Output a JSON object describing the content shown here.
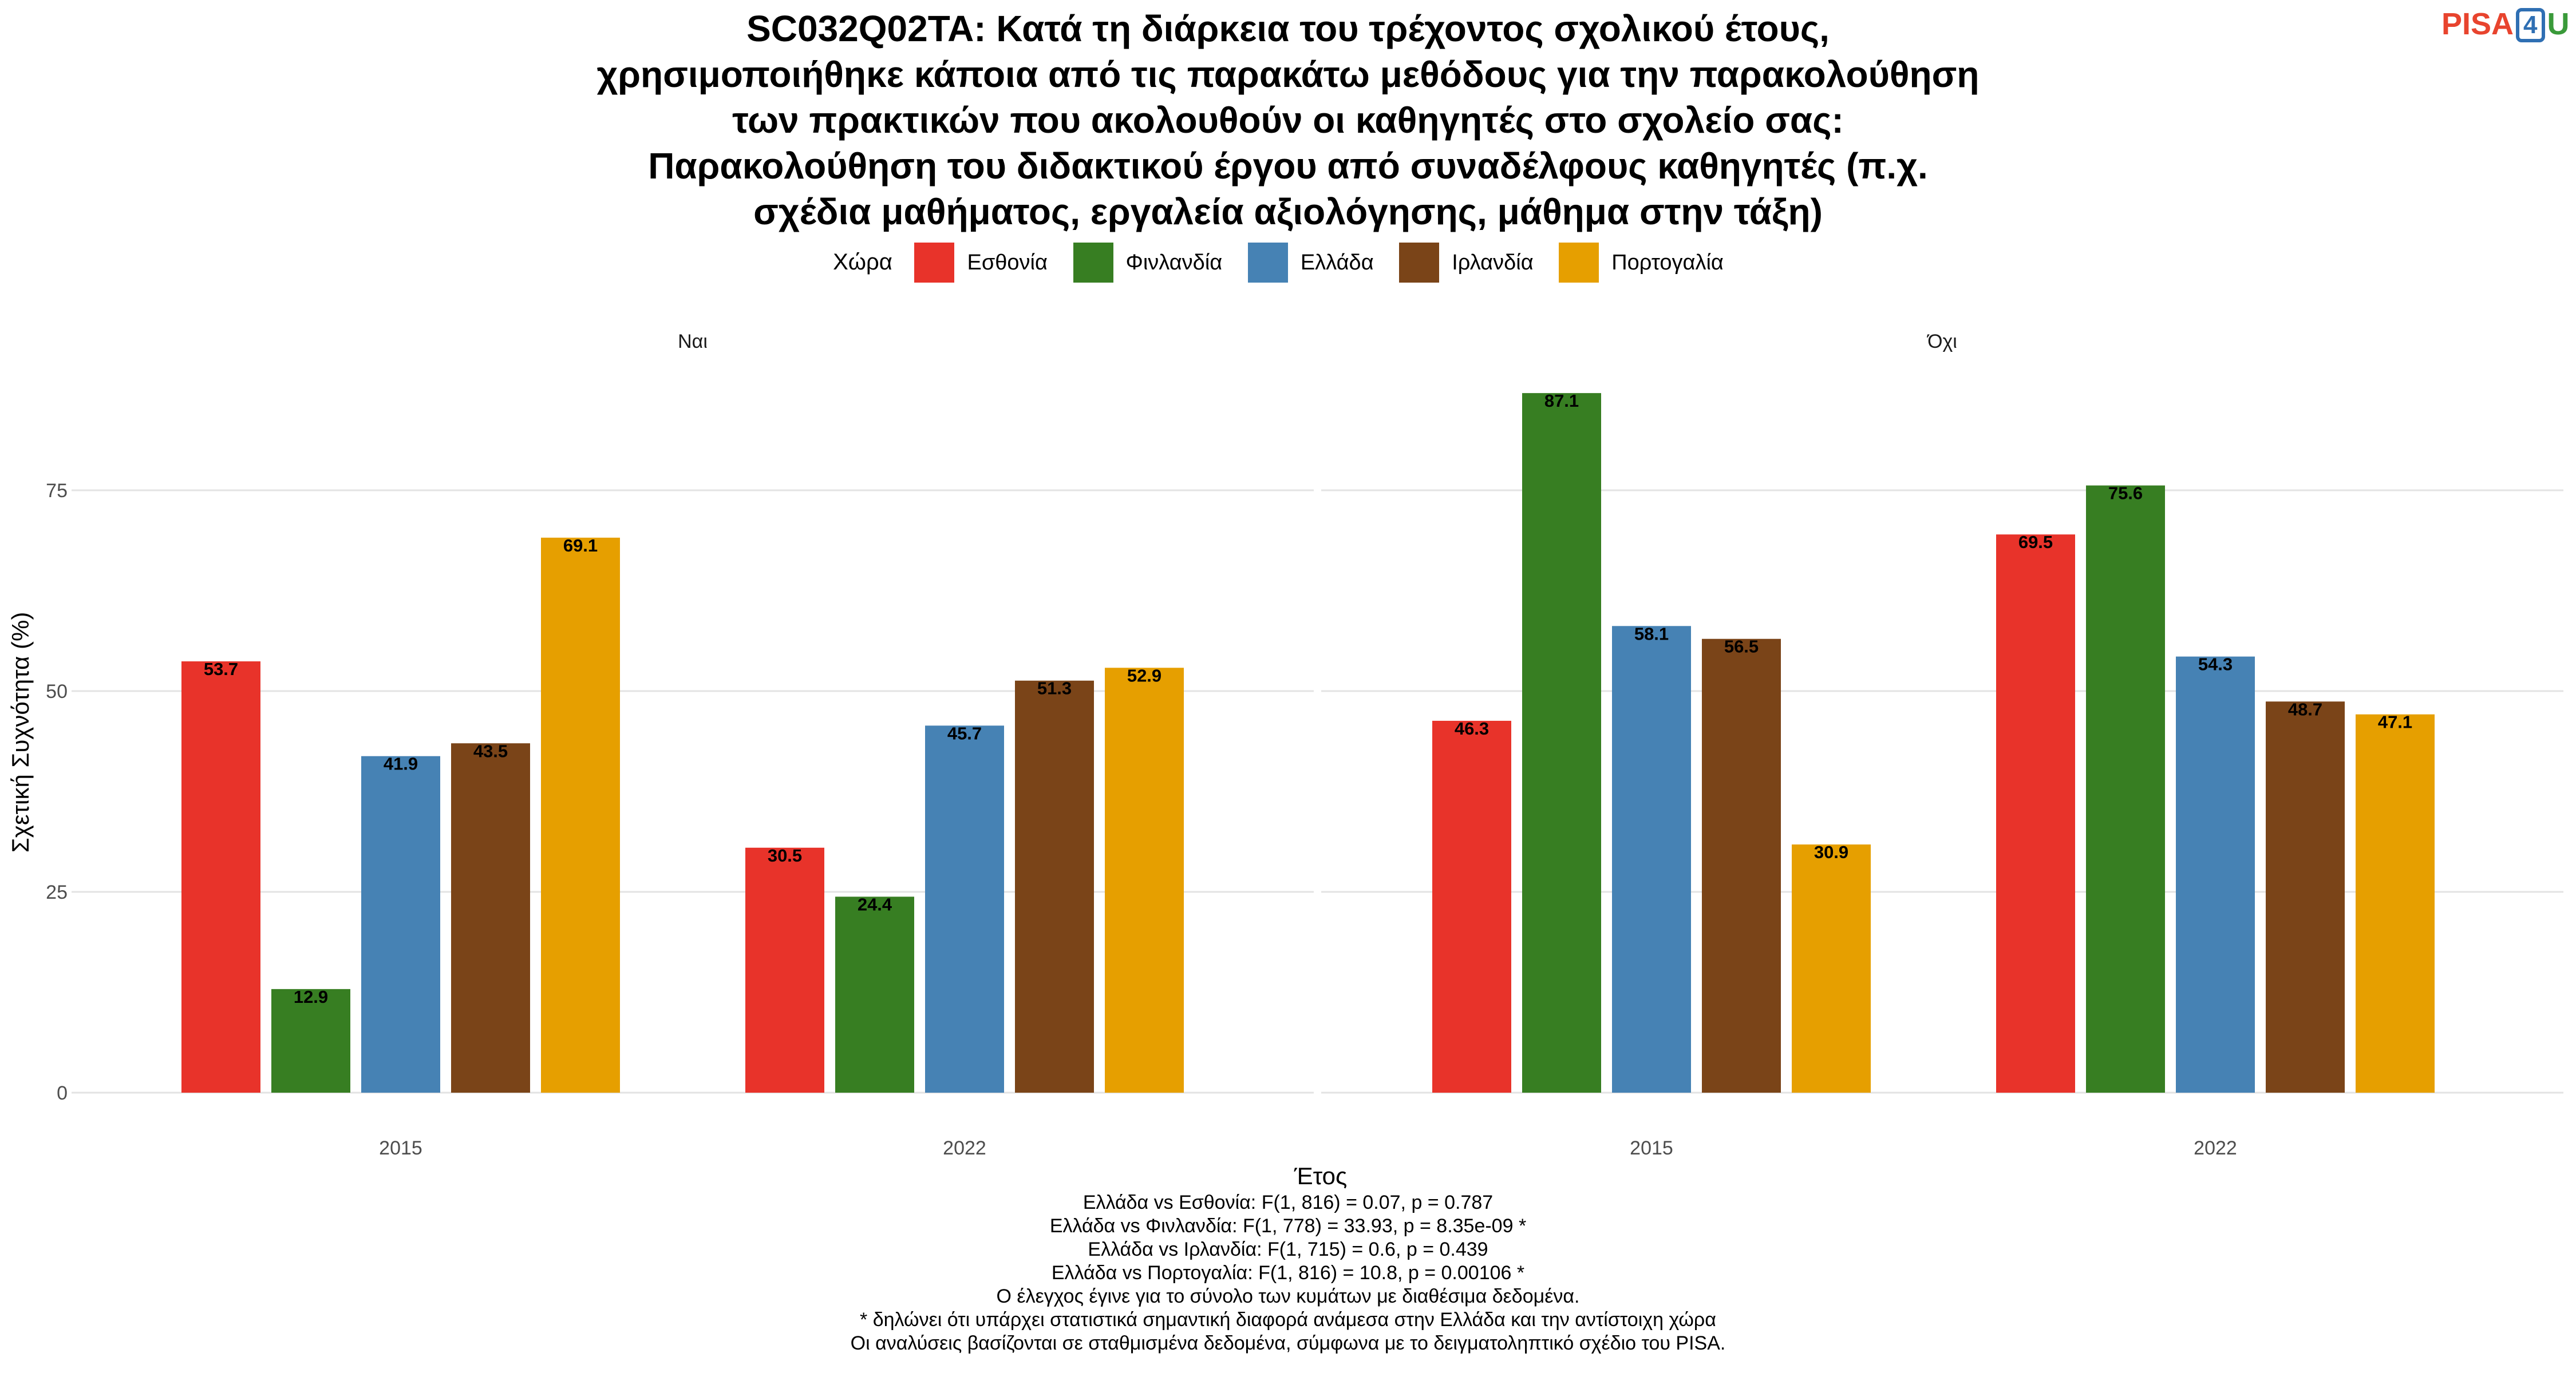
{
  "title_lines": [
    "SC032Q02TA: Κατά τη διάρκεια του τρέχοντος σχολικού έτους,",
    "χρησιμοποιήθηκε κάποια από τις παρακάτω μεθόδους για την παρακολούθηση",
    "των πρακτικών που ακολουθούν οι καθηγητές στο σχολείο σας:",
    "Παρακολούθηση του διδακτικού έργου από συναδέλφους καθηγητές (π.χ.",
    "σχέδια μαθήματος, εργαλεία αξιολόγησης, μάθημα στην τάξη)"
  ],
  "logo": {
    "part1": "PISA",
    "part2": "4",
    "part3": "U"
  },
  "chart_data": {
    "type": "bar",
    "title": "SC032Q02TA: Κατά τη διάρκεια του τρέχοντος σχολικού έτους, χρησιμοποιήθηκε κάποια από τις παρακάτω μεθόδους για την παρακολούθηση των πρακτικών που ακολουθούν οι καθηγητές στο σχολείο σας: Παρακολούθηση του διδακτικού έργου από συναδέλφους καθηγητές (π.χ. σχέδια μαθήματος, εργαλεία αξιολόγησης, μάθημα στην τάξη)",
    "xlabel": "Έτος",
    "ylabel": "Σχετική Συχνότητα (%)",
    "ylim": [
      0,
      90
    ],
    "yticks": [
      0,
      25,
      50,
      75
    ],
    "grid": true,
    "legend": {
      "title": "Χώρα",
      "position": "top",
      "entries": [
        "Εσθονία",
        "Φινλανδία",
        "Ελλάδα",
        "Ιρλανδία",
        "Πορτογαλία"
      ]
    },
    "colors": [
      "#e8332a",
      "#377e22",
      "#4682b4",
      "#7a4418",
      "#e69f00"
    ],
    "categories": [
      "2015",
      "2022"
    ],
    "facets": [
      {
        "label": "Ναι",
        "series": [
          {
            "name": "Εσθονία",
            "values": [
              53.7,
              30.5
            ]
          },
          {
            "name": "Φινλανδία",
            "values": [
              12.9,
              24.4
            ]
          },
          {
            "name": "Ελλάδα",
            "values": [
              41.9,
              45.7
            ]
          },
          {
            "name": "Ιρλανδία",
            "values": [
              43.5,
              51.3
            ]
          },
          {
            "name": "Πορτογαλία",
            "values": [
              69.1,
              52.9
            ]
          }
        ]
      },
      {
        "label": "Όχι",
        "series": [
          {
            "name": "Εσθονία",
            "values": [
              46.3,
              69.5
            ]
          },
          {
            "name": "Φινλανδία",
            "values": [
              87.1,
              75.6
            ]
          },
          {
            "name": "Ελλάδα",
            "values": [
              58.1,
              54.3
            ]
          },
          {
            "name": "Ιρλανδία",
            "values": [
              56.5,
              48.7
            ]
          },
          {
            "name": "Πορτογαλία",
            "values": [
              30.9,
              47.1
            ]
          }
        ]
      }
    ]
  },
  "notes": [
    "Ελλάδα vs Εσθονία: F(1, 816) = 0.07, p = 0.787",
    "Ελλάδα vs Φινλανδία: F(1, 778) = 33.93, p = 8.35e-09 *",
    "Ελλάδα vs Ιρλανδία: F(1, 715) = 0.6, p = 0.439",
    "Ελλάδα vs Πορτογαλία: F(1, 816) = 10.8, p = 0.00106 *",
    "Ο έλεγχος έγινε για το σύνολο των κυμάτων με διαθέσιμα δεδομένα.",
    "* δηλώνει ότι υπάρχει στατιστικά σημαντική διαφορά ανάμεσα στην Ελλάδα και την αντίστοιχη χώρα",
    "Οι αναλύσεις βασίζονται σε σταθμισμένα δεδομένα, σύμφωνα με το δειγματοληπτικό σχέδιο του PISA."
  ]
}
